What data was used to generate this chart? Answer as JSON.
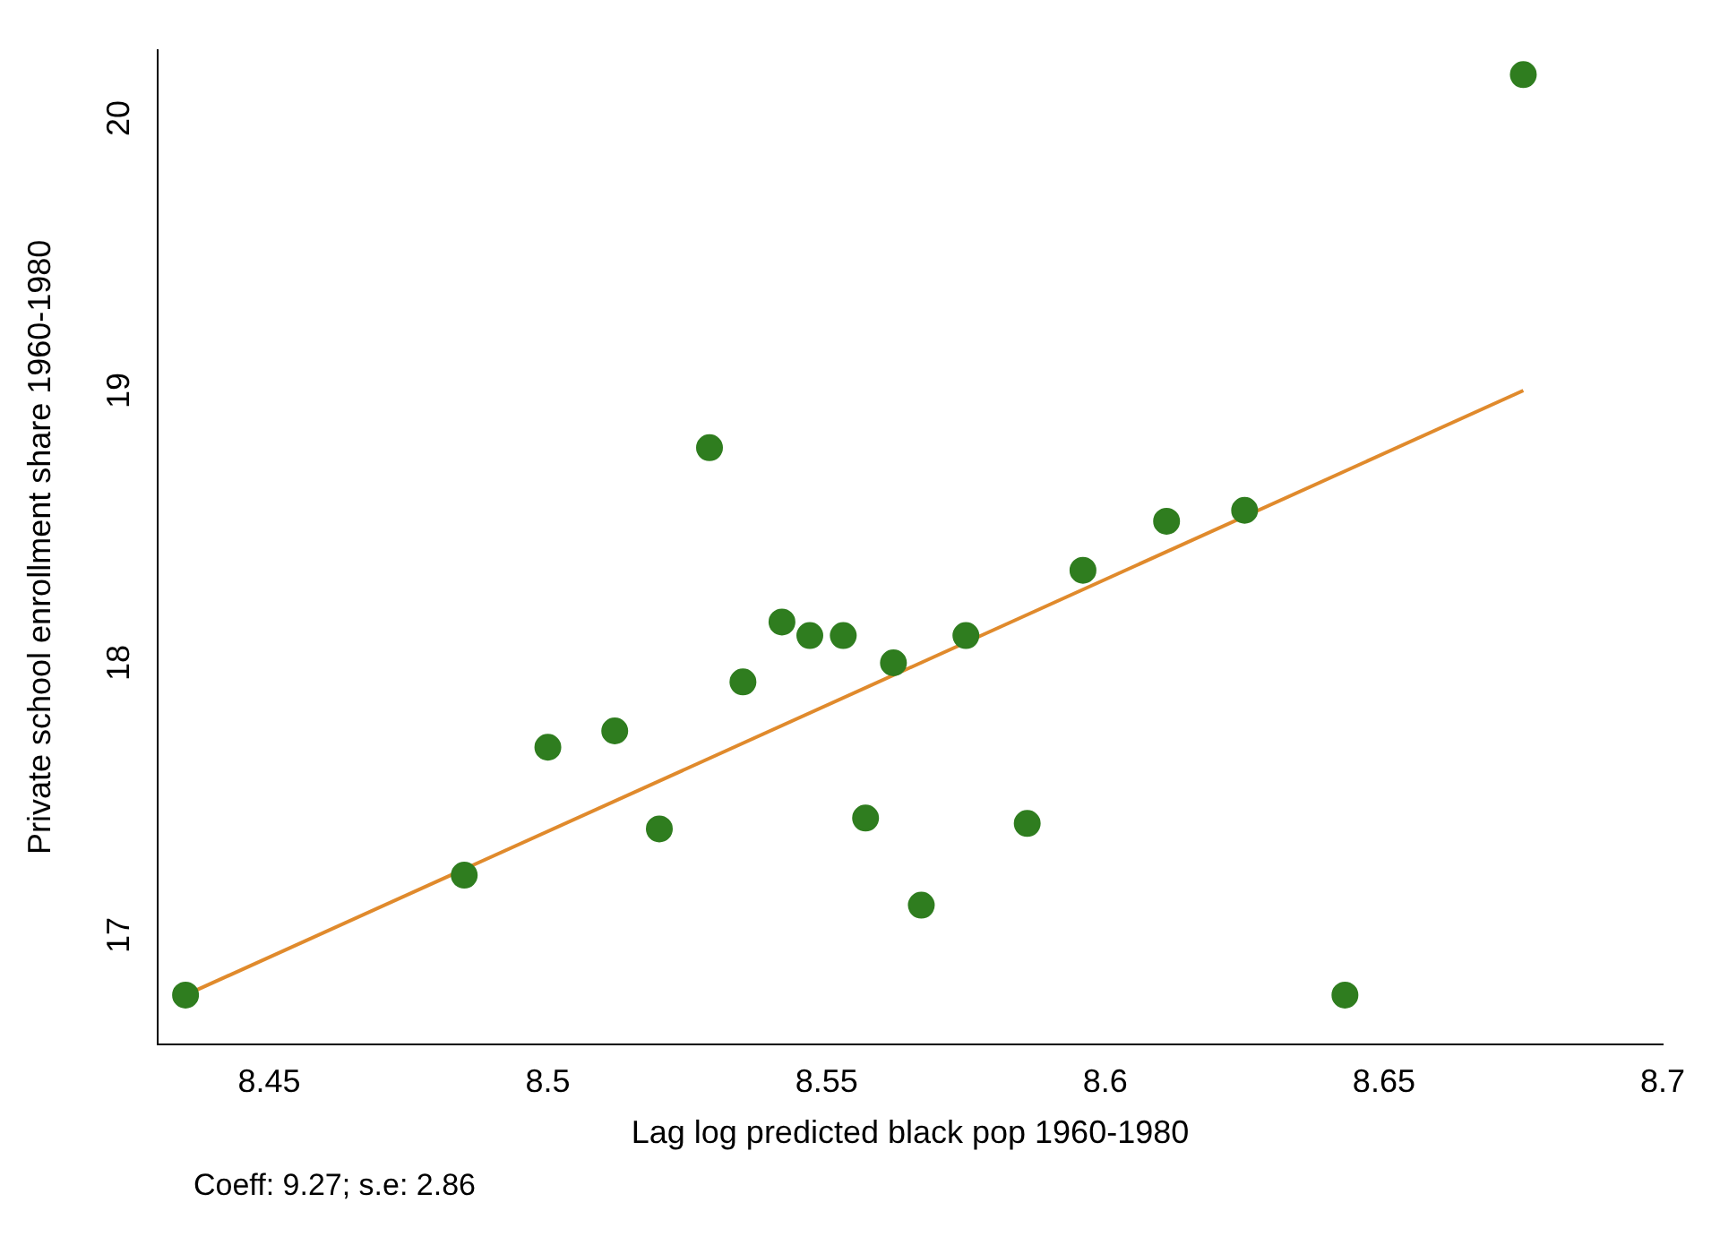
{
  "chart_data": {
    "type": "scatter",
    "xlabel": "Lag log predicted black pop 1960-1980",
    "ylabel": "Private school enrollment share 1960-1980",
    "annotations": [
      "Coeff:  9.27; s.e: 2.86"
    ],
    "xlim": [
      8.43,
      8.7
    ],
    "xticks": [
      8.45,
      8.5,
      8.55,
      8.6,
      8.65,
      8.7
    ],
    "ylim": [
      16.6,
      20.25
    ],
    "yticks": [
      17,
      18,
      19,
      20
    ],
    "grid": false,
    "legend": false,
    "series": [
      {
        "marker": "circle",
        "color": "#2f7d1f",
        "x": [
          8.435,
          8.485,
          8.5,
          8.512,
          8.52,
          8.529,
          8.535,
          8.542,
          8.547,
          8.553,
          8.557,
          8.562,
          8.567,
          8.575,
          8.586,
          8.596,
          8.611,
          8.625,
          8.643,
          8.675
        ],
        "values": [
          16.78,
          17.22,
          17.69,
          17.75,
          17.39,
          18.79,
          17.93,
          18.15,
          18.1,
          18.1,
          17.43,
          18.0,
          17.11,
          18.1,
          17.41,
          18.34,
          18.52,
          18.56,
          16.78,
          20.16
        ]
      },
      {
        "type": "line",
        "marker": "none",
        "color": "#e08a2c",
        "x": [
          8.435,
          8.675
        ],
        "values": [
          16.78,
          19.0
        ]
      }
    ]
  }
}
